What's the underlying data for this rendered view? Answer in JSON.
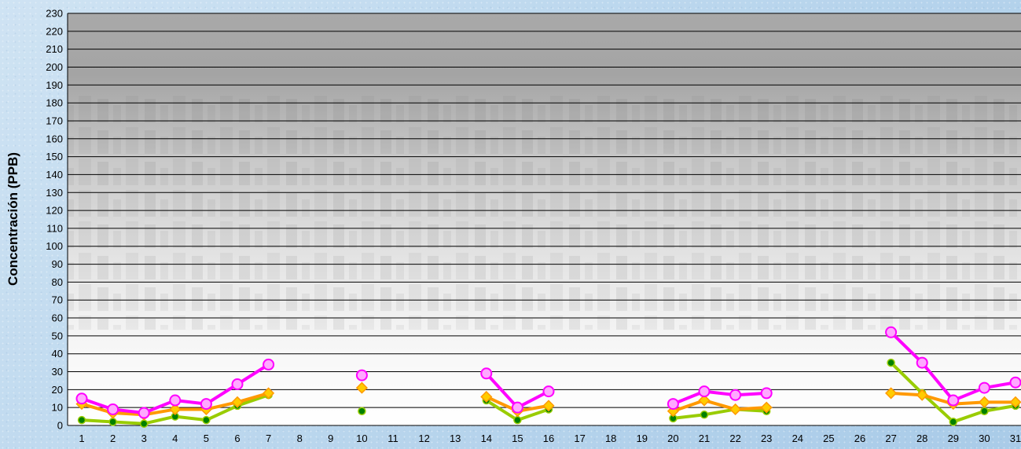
{
  "chart_data": {
    "type": "line",
    "title": "",
    "xlabel": "",
    "ylabel": "Concentración  (PPB)",
    "ylim": [
      0,
      230
    ],
    "y_ticks": [
      0,
      10,
      20,
      30,
      40,
      50,
      60,
      70,
      80,
      90,
      100,
      110,
      120,
      130,
      140,
      150,
      160,
      170,
      180,
      190,
      200,
      210,
      220,
      230
    ],
    "x": [
      "1",
      "2",
      "3",
      "4",
      "5",
      "6",
      "7",
      "8",
      "9",
      "10",
      "11",
      "12",
      "13",
      "14",
      "15",
      "16",
      "17",
      "18",
      "19",
      "20",
      "21",
      "22",
      "23",
      "24",
      "25",
      "26",
      "27",
      "28",
      "29",
      "30",
      "31"
    ],
    "grid": true,
    "legend": "none",
    "series": [
      {
        "color": "#ff00ff",
        "marker": "circle",
        "marker_fill": "#ffa8ff",
        "values": [
          15,
          9,
          7,
          14,
          12,
          23,
          34,
          null,
          null,
          28,
          null,
          null,
          null,
          29,
          10,
          19,
          null,
          null,
          null,
          12,
          19,
          17,
          18,
          null,
          null,
          null,
          52,
          35,
          14,
          21,
          24
        ]
      },
      {
        "color": "#ff9900",
        "marker": "diamond",
        "marker_fill": "#ffcc00",
        "values": [
          12,
          7,
          6,
          9,
          9,
          13,
          18,
          null,
          null,
          21,
          null,
          null,
          null,
          16,
          8,
          11,
          null,
          null,
          null,
          8,
          14,
          9,
          10,
          null,
          null,
          null,
          18,
          17,
          12,
          13,
          13
        ]
      },
      {
        "color": "#99cc00",
        "marker": "circle",
        "marker_fill": "#008000",
        "values": [
          3,
          2,
          1,
          5,
          3,
          11,
          17,
          null,
          null,
          8,
          null,
          null,
          null,
          14,
          3,
          9,
          null,
          null,
          null,
          4,
          6,
          9,
          8,
          null,
          null,
          null,
          35,
          18,
          2,
          8,
          11
        ]
      }
    ],
    "colors": {
      "plot_background_top": "#a9a9a9",
      "plot_background_bottom": "#ffffff",
      "gridline": "#000000"
    }
  }
}
